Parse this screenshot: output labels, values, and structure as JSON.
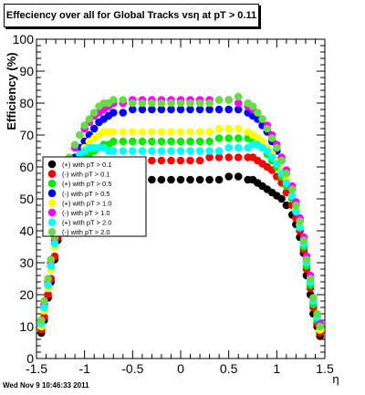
{
  "title": "Effeciency over all for Global Tracks vsη at pT > 0.11",
  "footer": "Wed Nov  9 10:46:33 2011",
  "chart_data": {
    "type": "scatter",
    "title": "Effeciency over all for Global Tracks vsη at pT > 0.11",
    "xlabel": "η",
    "ylabel": "Efficiency (%)",
    "xlim": [
      -1.5,
      1.5
    ],
    "ylim": [
      0,
      100
    ],
    "xticks": [
      "-1.5",
      "-1",
      "-0.5",
      "0",
      "0.5",
      "1",
      "1.5"
    ],
    "yticks": [
      "0",
      "10",
      "20",
      "30",
      "40",
      "50",
      "60",
      "70",
      "80",
      "90",
      "100"
    ],
    "legend_placement": "left-middle",
    "x": [
      -1.45,
      -1.42,
      -1.38,
      -1.35,
      -1.31,
      -1.28,
      -1.24,
      -1.2,
      -1.16,
      -1.1,
      -1.05,
      -1.0,
      -0.95,
      -0.9,
      -0.85,
      -0.8,
      -0.75,
      -0.7,
      -0.6,
      -0.5,
      -0.4,
      -0.3,
      -0.2,
      -0.1,
      0.0,
      0.1,
      0.2,
      0.3,
      0.4,
      0.5,
      0.6,
      0.7,
      0.75,
      0.8,
      0.85,
      0.9,
      0.95,
      1.0,
      1.05,
      1.1,
      1.16,
      1.2,
      1.24,
      1.28,
      1.31,
      1.35,
      1.38,
      1.42,
      1.45
    ],
    "series": [
      {
        "name": "(+) with pT > 0.1",
        "color": "#000000",
        "values": [
          8,
          12,
          19,
          24,
          31,
          37,
          42,
          45,
          47,
          49,
          50,
          51,
          52,
          53,
          54,
          55,
          55,
          56,
          56,
          56,
          56,
          56,
          56,
          56,
          56,
          56,
          56,
          56,
          56,
          57,
          57,
          56,
          56,
          55,
          54,
          53,
          52,
          51,
          50,
          48,
          45,
          42,
          38,
          33,
          26,
          20,
          14,
          10,
          7
        ]
      },
      {
        "name": "(-) with pT > 0.1",
        "color": "#ff0000",
        "values": [
          9,
          13,
          20,
          25,
          32,
          38,
          43,
          47,
          50,
          52,
          54,
          56,
          58,
          59,
          60,
          61,
          61,
          62,
          62,
          62,
          62,
          62,
          62,
          62,
          62,
          62,
          62,
          63,
          63,
          63,
          63,
          63,
          63,
          62,
          61,
          60,
          59,
          57,
          55,
          52,
          48,
          44,
          40,
          34,
          28,
          22,
          16,
          11,
          8
        ]
      },
      {
        "name": "(+) with pT > 0.5",
        "color": "#00ee00",
        "values": [
          10,
          15,
          22,
          28,
          35,
          41,
          47,
          52,
          56,
          59,
          61,
          63,
          64,
          65,
          66,
          67,
          67,
          68,
          68,
          68,
          68,
          68,
          68,
          68,
          68,
          68,
          68,
          68,
          69,
          69,
          69,
          69,
          68,
          67,
          66,
          64,
          62,
          60,
          57,
          54,
          50,
          46,
          41,
          35,
          29,
          23,
          17,
          12,
          9
        ]
      },
      {
        "name": "(-) with pT > 0.5",
        "color": "#0000ff",
        "values": [
          11,
          16,
          23,
          29,
          36,
          43,
          49,
          55,
          59,
          63,
          66,
          68,
          70,
          72,
          74,
          75,
          76,
          77,
          77,
          78,
          78,
          78,
          78,
          78,
          78,
          78,
          78,
          78,
          78,
          78,
          78,
          77,
          76,
          75,
          73,
          71,
          68,
          65,
          62,
          58,
          53,
          48,
          43,
          37,
          31,
          25,
          18,
          13,
          10
        ]
      },
      {
        "name": "(+) with pT > 1.0",
        "color": "#ffff00",
        "values": [
          10,
          15,
          22,
          28,
          35,
          42,
          48,
          54,
          58,
          62,
          64,
          66,
          68,
          69,
          70,
          71,
          71,
          71,
          71,
          71,
          71,
          71,
          71,
          71,
          71,
          71,
          71,
          71,
          72,
          72,
          72,
          71,
          70,
          69,
          68,
          66,
          64,
          62,
          59,
          56,
          51,
          47,
          42,
          36,
          30,
          24,
          18,
          13,
          9
        ]
      },
      {
        "name": "(-) with pT > 1.0",
        "color": "#ff00ff",
        "values": [
          12,
          17,
          24,
          30,
          37,
          44,
          51,
          57,
          62,
          66,
          70,
          72,
          74,
          76,
          77,
          78,
          79,
          80,
          80,
          81,
          81,
          81,
          81,
          81,
          81,
          81,
          81,
          81,
          81,
          81,
          80,
          79,
          78,
          77,
          75,
          73,
          70,
          67,
          63,
          59,
          54,
          49,
          44,
          38,
          32,
          26,
          19,
          14,
          11
        ]
      },
      {
        "name": "(+) with pT > 2.0",
        "color": "#00ffff",
        "values": [
          11,
          16,
          23,
          29,
          36,
          43,
          49,
          55,
          59,
          62,
          64,
          65,
          66,
          66,
          66,
          66,
          65,
          65,
          65,
          65,
          65,
          65,
          65,
          65,
          65,
          65,
          65,
          65,
          65,
          66,
          66,
          66,
          67,
          67,
          66,
          65,
          63,
          61,
          58,
          55,
          51,
          46,
          41,
          36,
          30,
          24,
          18,
          13,
          10
        ]
      },
      {
        "name": "(-) with pT > 2.0",
        "color": "#66dd44",
        "values": [
          12,
          18,
          25,
          31,
          38,
          45,
          52,
          58,
          63,
          67,
          70,
          73,
          75,
          77,
          79,
          80,
          80,
          81,
          81,
          80,
          80,
          80,
          80,
          80,
          80,
          80,
          80,
          80,
          81,
          81,
          82,
          80,
          79,
          77,
          75,
          72,
          69,
          66,
          62,
          58,
          53,
          48,
          43,
          37,
          31,
          25,
          19,
          14,
          10
        ]
      }
    ]
  }
}
